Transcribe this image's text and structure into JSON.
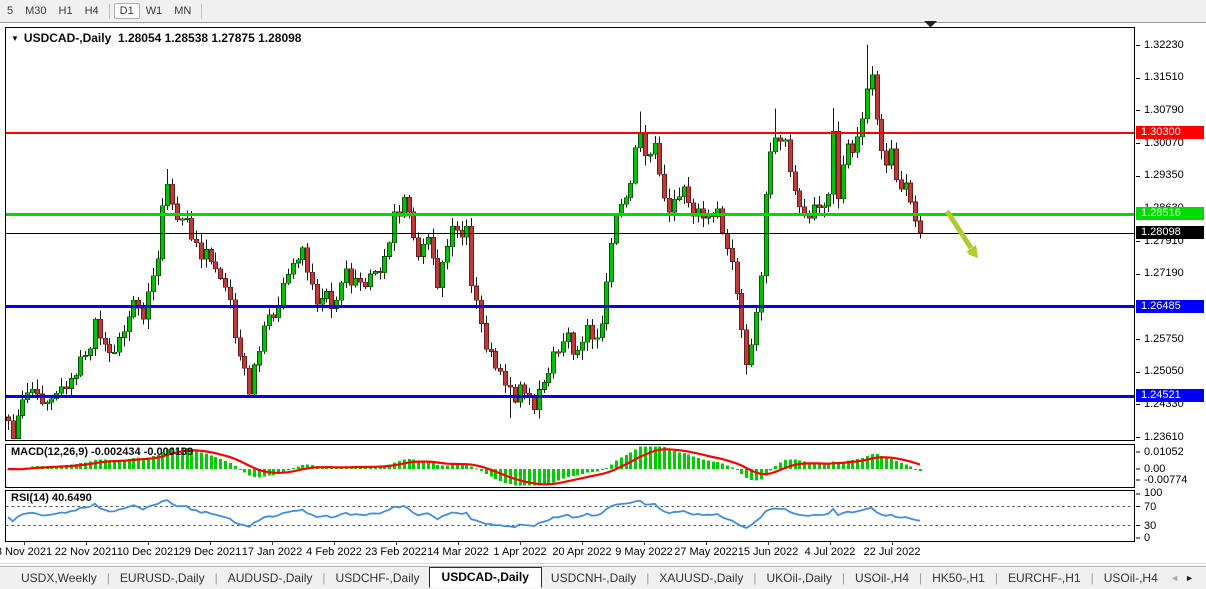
{
  "toolbar": {
    "timeframes": [
      "5",
      "M30",
      "H1",
      "H4",
      "D1",
      "W1",
      "MN"
    ],
    "active_timeframe": "D1"
  },
  "window": {
    "title_symbol": "USDCAD-,Daily",
    "title_ohlc": "1.28054 1.28538 1.27875 1.28098",
    "dropdown_icon": "▼"
  },
  "chart_data": {
    "type": "candlestick",
    "symbol": "USDCAD-",
    "timeframe": "Daily",
    "ohlc_display": {
      "open": "1.28054",
      "high": "1.28538",
      "low": "1.27875",
      "close": "1.28098"
    },
    "n_candles": 190,
    "price_top": 1.3223,
    "price_bottom": 1.2361,
    "close_anchors": [
      [
        0,
        1.239
      ],
      [
        1,
        1.2363
      ],
      [
        3,
        1.244
      ],
      [
        5,
        1.2465
      ],
      [
        7,
        1.2425
      ],
      [
        9,
        1.2435
      ],
      [
        11,
        1.2468
      ],
      [
        13,
        1.248
      ],
      [
        15,
        1.253
      ],
      [
        17,
        1.2565
      ],
      [
        18,
        1.261
      ],
      [
        20,
        1.256
      ],
      [
        22,
        1.255
      ],
      [
        23,
        1.2572
      ],
      [
        25,
        1.2625
      ],
      [
        26,
        1.266
      ],
      [
        28,
        1.263
      ],
      [
        29,
        1.269
      ],
      [
        31,
        1.275
      ],
      [
        32,
        1.288
      ],
      [
        33,
        1.292
      ],
      [
        34,
        1.2868
      ],
      [
        36,
        1.283
      ],
      [
        37,
        1.2852
      ],
      [
        38,
        1.28
      ],
      [
        40,
        1.276
      ],
      [
        41,
        1.2772
      ],
      [
        43,
        1.273
      ],
      [
        44,
        1.271
      ],
      [
        46,
        1.266
      ],
      [
        47,
        1.258
      ],
      [
        49,
        1.251
      ],
      [
        50,
        1.2465
      ],
      [
        51,
        1.252
      ],
      [
        52,
        1.256
      ],
      [
        53,
        1.261
      ],
      [
        55,
        1.263
      ],
      [
        56,
        1.266
      ],
      [
        57,
        1.27
      ],
      [
        58,
        1.272
      ],
      [
        60,
        1.275
      ],
      [
        61,
        1.2772
      ],
      [
        63,
        1.269
      ],
      [
        64,
        1.265
      ],
      [
        66,
        1.2672
      ],
      [
        67,
        1.264
      ],
      [
        69,
        1.27
      ],
      [
        70,
        1.2722
      ],
      [
        71,
        1.269
      ],
      [
        73,
        1.2712
      ],
      [
        74,
        1.27
      ],
      [
        76,
        1.273
      ],
      [
        77,
        1.2718
      ],
      [
        79,
        1.278
      ],
      [
        80,
        1.286
      ],
      [
        81,
        1.2838
      ],
      [
        82,
        1.288
      ],
      [
        84,
        1.281
      ],
      [
        85,
        1.2768
      ],
      [
        87,
        1.279
      ],
      [
        88,
        1.275
      ],
      [
        89,
        1.27
      ],
      [
        91,
        1.278
      ],
      [
        92,
        1.283
      ],
      [
        94,
        1.279
      ],
      [
        95,
        1.2822
      ],
      [
        96,
        1.27
      ],
      [
        98,
        1.261
      ],
      [
        99,
        1.256
      ],
      [
        101,
        1.252
      ],
      [
        102,
        1.25
      ],
      [
        104,
        1.2468
      ],
      [
        105,
        1.244
      ],
      [
        106,
        1.248
      ],
      [
        108,
        1.2442
      ],
      [
        109,
        1.242
      ],
      [
        110,
        1.247
      ],
      [
        112,
        1.251
      ],
      [
        113,
        1.254
      ],
      [
        115,
        1.257
      ],
      [
        116,
        1.259
      ],
      [
        117,
        1.2542
      ],
      [
        119,
        1.2572
      ],
      [
        120,
        1.26
      ],
      [
        122,
        1.2572
      ],
      [
        123,
        1.262
      ],
      [
        125,
        1.279
      ],
      [
        126,
        1.285
      ],
      [
        128,
        1.288
      ],
      [
        129,
        1.292
      ],
      [
        130,
        1.299
      ],
      [
        131,
        1.302
      ],
      [
        132,
        1.298
      ],
      [
        134,
        1.3
      ],
      [
        135,
        1.293
      ],
      [
        136,
        1.289
      ],
      [
        137,
        1.286
      ],
      [
        138,
        1.289
      ],
      [
        140,
        1.291
      ],
      [
        141,
        1.287
      ],
      [
        142,
        1.285
      ],
      [
        143,
        1.2862
      ],
      [
        145,
        1.284
      ],
      [
        146,
        1.2856
      ],
      [
        147,
        1.2862
      ],
      [
        148,
        1.281
      ],
      [
        150,
        1.275
      ],
      [
        151,
        1.268
      ],
      [
        152,
        1.26
      ],
      [
        153,
        1.253
      ],
      [
        154,
        1.256
      ],
      [
        156,
        1.272
      ],
      [
        157,
        1.289
      ],
      [
        158,
        1.299
      ],
      [
        159,
        1.303
      ],
      [
        161,
        1.301
      ],
      [
        162,
        1.295
      ],
      [
        163,
        1.29
      ],
      [
        164,
        1.287
      ],
      [
        166,
        1.285
      ],
      [
        167,
        1.288
      ],
      [
        168,
        1.286
      ],
      [
        169,
        1.2872
      ],
      [
        170,
        1.289
      ],
      [
        171,
        1.3035
      ],
      [
        172,
        1.289
      ],
      [
        173,
        1.296
      ],
      [
        174,
        1.3
      ],
      [
        175,
        1.299
      ],
      [
        176,
        1.303
      ],
      [
        177,
        1.3052
      ],
      [
        178,
        1.313
      ],
      [
        179,
        1.315
      ],
      [
        180,
        1.306
      ],
      [
        181,
        1.3
      ],
      [
        182,
        1.297
      ],
      [
        183,
        1.299
      ],
      [
        184,
        1.293
      ],
      [
        185,
        1.29
      ],
      [
        186,
        1.292
      ],
      [
        187,
        1.288
      ],
      [
        188,
        1.284
      ],
      [
        189,
        1.281
      ]
    ],
    "last_close": 1.28098,
    "wick_overrides": {
      "1": {
        "l": 1.2357
      },
      "33": {
        "h": 1.295
      },
      "50": {
        "l": 1.245
      },
      "104": {
        "l": 1.2403
      },
      "131": {
        "h": 1.3077
      },
      "153": {
        "l": 1.2498
      },
      "159": {
        "h": 1.3083
      },
      "171": {
        "h": 1.3084
      },
      "178": {
        "h": 1.3224
      }
    },
    "x_labels": [
      "3 Nov 2021",
      "22 Nov 2021",
      "10 Dec 2021",
      "29 Dec 2021",
      "17 Jan 2022",
      "4 Feb 2022",
      "23 Feb 2022",
      "14 Mar 2022",
      "1 Apr 2022",
      "20 Apr 2022",
      "9 May 2022",
      "27 May 2022",
      "15 Jun 2022",
      "4 Jul 2022",
      "22 Jul 2022"
    ],
    "y_axis_ticks": [
      "1.32230",
      "1.31510",
      "1.30790",
      "1.30070",
      "1.29350",
      "1.28630",
      "1.27910",
      "1.27190",
      "1.26470",
      "1.25750",
      "1.25050",
      "1.24330",
      "1.23610"
    ],
    "levels": [
      {
        "price": 1.303,
        "label": "1.30300",
        "color": "#FF0000",
        "width": 2
      },
      {
        "price": 1.28516,
        "label": "1.28516",
        "color": "#00DB00",
        "width": 3
      },
      {
        "price": 1.28098,
        "label": "1.28098",
        "color": "#000000",
        "width": 1
      },
      {
        "price": 1.26485,
        "label": "1.26485",
        "color": "#0000FF",
        "width": 3
      },
      {
        "price": 1.24521,
        "label": "1.24521",
        "color": "#0000FF",
        "width": 3
      }
    ],
    "indicators": {
      "macd": {
        "label": "MACD(12,26,9)",
        "values": "-0.002434 -0.000139",
        "scale_ticks": [
          "0.01052",
          "0.00",
          "-0.00774"
        ],
        "histogram_color": "#00CC00",
        "signal_color": "#FF0000"
      },
      "rsi": {
        "label": "RSI(14) 40.6490",
        "scale_ticks": [
          "100",
          "70",
          "30",
          "0"
        ],
        "overbought": 70,
        "oversold": 30,
        "line_color": "#3E8EE4"
      }
    },
    "candle_colors": {
      "bull": "#00C400",
      "bear": "#C03A3A",
      "wick": "#1a1a1a"
    },
    "annotations": [
      {
        "type": "down-right-arrow",
        "color": "#AECB2F"
      },
      {
        "type": "scroll-marker-triangle",
        "color": "#222222"
      }
    ]
  },
  "tabs": {
    "items": [
      "USDX,Weekly",
      "EURUSD-,Daily",
      "AUDUSD-,Daily",
      "USDCHF-,Daily",
      "USDCAD-,Daily",
      "USDCNH-,Daily",
      "XAUUSD-,Daily",
      "UKOil-,Daily",
      "USOil-,H4",
      "HK50-,H1",
      "EURCHF-,H1",
      "USOil-,H4"
    ],
    "active_index": 4,
    "scroll_left": "◄",
    "scroll_right": "►"
  }
}
